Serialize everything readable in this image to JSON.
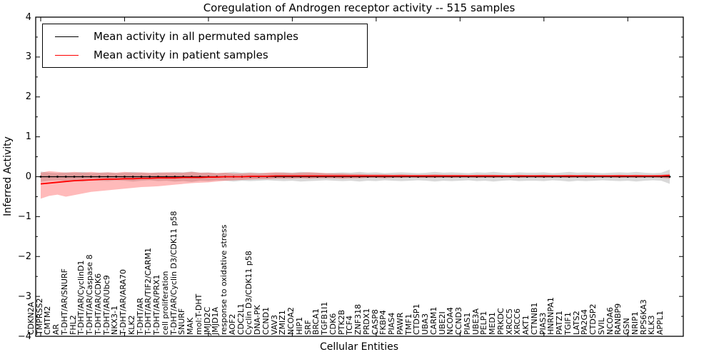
{
  "title": "Coregulation of Androgen receptor activity -- 515 samples",
  "chart_data": {
    "type": "line",
    "title": "Coregulation of Androgen receptor activity -- 515 samples",
    "xlabel": "Cellular Entities",
    "ylabel": "Inferred Activity",
    "ylim": [
      -4,
      4
    ],
    "ytick_labels": [
      "4",
      "3",
      "2",
      "1",
      "0",
      "−1",
      "−2",
      "−3",
      "−4"
    ],
    "ytick_values": [
      4,
      3,
      2,
      1,
      0,
      -1,
      -2,
      -3,
      -4
    ],
    "grid": false,
    "legend_position": "upper left",
    "categories": [
      "CDKN2A",
      "TMPRSS2",
      "CMTM2",
      "AR",
      "T-DHT/AR/SNURF",
      "FHL2",
      "T-DHT/AR/CyclinD1",
      "T-DHT/AR/Caspase 8",
      "T-DHT/AR/CDK6",
      "T-DHT/AR/Ubc9",
      "NKX3-1",
      "T-DHT/AR/ARA70",
      "KLK2",
      "T-DHT/AR",
      "T-DHT/AR/TIF2/CARM1",
      "T-DHT/AR/PRX1",
      "cell proliferation",
      "T-DHT/AR/Cyclin D3/CDK11 p58",
      "SNURF",
      "MAK",
      "mol:T-DHT",
      "JMJD2C",
      "JMJD1A",
      "response to oxidative stress",
      "AOF2",
      "CDC2L1",
      "Cyclin D3/CDK11 p58",
      "DNA-PK",
      "CCND1",
      "VAV3",
      "ZMIZ1",
      "NCOA2",
      "HIP1",
      "SRF",
      "BRCA1",
      "TGFB1I1",
      "CDK6",
      "PTK2B",
      "TCF4",
      "ZNF318",
      "PRDX1",
      "CASP8",
      "FKBP4",
      "PIAS4",
      "PAWR",
      "TMF1",
      "CTDSP1",
      "UBA3",
      "CARM1",
      "UBE2I",
      "NCOA4",
      "CCND3",
      "PIAS1",
      "UBE3A",
      "PELP1",
      "MED1",
      "PRKDC",
      "XRCC5",
      "XRCC6",
      "AKT1",
      "CTNNB1",
      "PIAS3",
      "HNRNPA1",
      "PATZ1",
      "TGIF1",
      "LATS2",
      "PA2G4",
      "CTDSP2",
      "SVIL",
      "NCOA6",
      "RANBP9",
      "GSN",
      "NRIP1",
      "RPS6KA3",
      "KLK3",
      "APPL1"
    ],
    "series": [
      {
        "name": "Mean activity in all permuted samples",
        "color": "#000000",
        "band_color": "rgba(128,128,128,0.30)",
        "markers": true,
        "values": [
          0,
          0,
          0,
          0,
          0,
          0,
          0,
          0,
          0,
          0,
          0,
          0,
          0,
          0,
          0,
          0,
          0,
          0,
          0,
          0,
          0,
          0,
          0,
          0,
          0,
          0,
          0,
          0,
          0,
          0,
          0,
          0,
          0,
          0,
          0,
          0,
          0,
          0,
          0,
          0,
          0,
          0,
          0,
          0,
          0,
          0,
          0,
          0,
          0,
          0,
          0,
          0,
          0,
          0,
          0,
          0,
          0,
          0,
          0,
          0,
          0,
          0,
          0,
          0,
          0,
          0,
          0,
          0,
          0,
          0,
          0,
          0,
          0,
          0,
          0,
          0
        ],
        "band_upper": [
          0.13,
          0.1,
          0.09,
          0.11,
          0.1,
          0.12,
          0.09,
          0.1,
          0.11,
          0.09,
          0.1,
          0.12,
          0.1,
          0.09,
          0.11,
          0.1,
          0.12,
          0.11,
          0.13,
          0.1,
          0.11,
          0.09,
          0.1,
          0.12,
          0.1,
          0.11,
          0.1,
          0.09,
          0.1,
          0.11,
          0.1,
          0.12,
          0.11,
          0.1,
          0.09,
          0.1,
          0.11,
          0.1,
          0.12,
          0.1,
          0.11,
          0.09,
          0.1,
          0.11,
          0.1,
          0.09,
          0.1,
          0.12,
          0.1,
          0.11,
          0.1,
          0.09,
          0.11,
          0.1,
          0.12,
          0.1,
          0.09,
          0.11,
          0.1,
          0.1,
          0.11,
          0.09,
          0.1,
          0.12,
          0.1,
          0.11,
          0.1,
          0.09,
          0.1,
          0.11,
          0.1,
          0.12,
          0.1,
          0.09,
          0.1,
          0.18
        ],
        "band_lower": [
          -0.13,
          -0.1,
          -0.09,
          -0.11,
          -0.1,
          -0.12,
          -0.09,
          -0.1,
          -0.11,
          -0.09,
          -0.1,
          -0.12,
          -0.1,
          -0.09,
          -0.11,
          -0.1,
          -0.12,
          -0.11,
          -0.13,
          -0.1,
          -0.11,
          -0.09,
          -0.1,
          -0.12,
          -0.1,
          -0.11,
          -0.1,
          -0.09,
          -0.1,
          -0.11,
          -0.1,
          -0.12,
          -0.11,
          -0.1,
          -0.09,
          -0.1,
          -0.11,
          -0.1,
          -0.12,
          -0.1,
          -0.11,
          -0.09,
          -0.1,
          -0.11,
          -0.1,
          -0.09,
          -0.1,
          -0.12,
          -0.1,
          -0.11,
          -0.1,
          -0.09,
          -0.11,
          -0.1,
          -0.12,
          -0.1,
          -0.09,
          -0.11,
          -0.1,
          -0.1,
          -0.11,
          -0.09,
          -0.1,
          -0.12,
          -0.1,
          -0.11,
          -0.1,
          -0.09,
          -0.1,
          -0.11,
          -0.1,
          -0.12,
          -0.1,
          -0.09,
          -0.1,
          -0.18
        ]
      },
      {
        "name": "Mean activity in patient samples",
        "color": "#ff0000",
        "band_color": "rgba(255,0,0,0.27)",
        "markers": false,
        "values": [
          -0.18,
          -0.16,
          -0.14,
          -0.12,
          -0.1,
          -0.09,
          -0.08,
          -0.07,
          -0.06,
          -0.06,
          -0.05,
          -0.05,
          -0.04,
          -0.04,
          -0.03,
          -0.03,
          -0.03,
          -0.02,
          -0.02,
          -0.02,
          -0.01,
          -0.01,
          0.0,
          0.0,
          0.0,
          0.01,
          0.01,
          0.01,
          0.02,
          0.02,
          0.02,
          0.02,
          0.02,
          0.02,
          0.02,
          0.02,
          0.02,
          0.02,
          0.02,
          0.02,
          0.02,
          0.02,
          0.02,
          0.02,
          0.02,
          0.02,
          0.02,
          0.02,
          0.02,
          0.02,
          0.02,
          0.02,
          0.02,
          0.02,
          0.02,
          0.02,
          0.02,
          0.02,
          0.02,
          0.02,
          0.02,
          0.02,
          0.02,
          0.02,
          0.02,
          0.02,
          0.02,
          0.02,
          0.02,
          0.02,
          0.02,
          0.02,
          0.02,
          0.02,
          0.02,
          0.03
        ],
        "band_upper": [
          0.1,
          0.14,
          0.12,
          0.1,
          0.12,
          0.1,
          0.12,
          0.1,
          0.11,
          0.1,
          0.12,
          0.1,
          0.11,
          0.1,
          0.1,
          0.11,
          0.1,
          0.1,
          0.12,
          0.1,
          0.1,
          0.09,
          0.1,
          0.08,
          0.08,
          0.09,
          0.08,
          0.1,
          0.11,
          0.1,
          0.09,
          0.1,
          0.11,
          0.1,
          0.09,
          0.08,
          0.08,
          0.07,
          0.07,
          0.06,
          0.06,
          0.06,
          0.05,
          0.06,
          0.05,
          0.05,
          0.05,
          0.06,
          0.05,
          0.05,
          0.05,
          0.04,
          0.05,
          0.05,
          0.05,
          0.04,
          0.04,
          0.05,
          0.04,
          0.04,
          0.05,
          0.04,
          0.04,
          0.05,
          0.04,
          0.05,
          0.04,
          0.04,
          0.04,
          0.05,
          0.04,
          0.05,
          0.04,
          0.04,
          0.05,
          0.07
        ],
        "band_lower": [
          -0.55,
          -0.48,
          -0.45,
          -0.5,
          -0.46,
          -0.42,
          -0.38,
          -0.36,
          -0.34,
          -0.32,
          -0.3,
          -0.28,
          -0.26,
          -0.25,
          -0.24,
          -0.22,
          -0.2,
          -0.18,
          -0.16,
          -0.15,
          -0.14,
          -0.12,
          -0.1,
          -0.09,
          -0.08,
          -0.07,
          -0.06,
          -0.06,
          -0.05,
          -0.05,
          -0.05,
          -0.04,
          -0.05,
          -0.04,
          -0.04,
          -0.04,
          -0.05,
          -0.04,
          -0.04,
          -0.03,
          -0.03,
          -0.04,
          -0.03,
          -0.03,
          -0.02,
          -0.03,
          -0.03,
          -0.03,
          -0.02,
          -0.03,
          -0.02,
          -0.02,
          -0.03,
          -0.02,
          -0.03,
          -0.02,
          -0.02,
          -0.03,
          -0.02,
          -0.02,
          -0.03,
          -0.02,
          -0.02,
          -0.03,
          -0.02,
          -0.03,
          -0.02,
          -0.02,
          -0.02,
          -0.03,
          -0.02,
          -0.03,
          -0.02,
          -0.02,
          -0.03,
          -0.05
        ]
      }
    ]
  },
  "legend": {
    "items": [
      {
        "label": "Mean activity in all permuted samples",
        "color": "#000000"
      },
      {
        "label": "Mean activity in patient samples",
        "color": "#ff0000"
      }
    ]
  }
}
